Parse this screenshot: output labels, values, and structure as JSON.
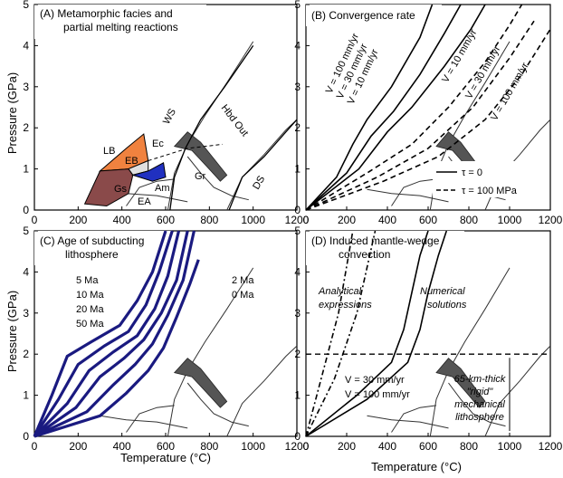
{
  "figure": {
    "ylabel": "Pressure (GPa)",
    "xlabel": "Temperature (°C)"
  },
  "chart_data": [
    {
      "type": "line",
      "title_lines": [
        "(A) Metamorphic facies and",
        "partial melting reactions"
      ],
      "xlim": [
        0,
        1200
      ],
      "ylim": [
        0,
        5
      ],
      "x_ticks": [
        0,
        200,
        400,
        600,
        800,
        1000,
        1200
      ],
      "y_ticks": [
        0,
        1,
        2,
        3,
        4,
        5
      ],
      "facies": [
        {
          "label": "LB",
          "color": "#f0823f",
          "polygon": [
            [
              300,
              0.95
            ],
            [
              420,
              1.5
            ],
            [
              500,
              1.85
            ],
            [
              520,
              1.2
            ],
            [
              430,
              1.0
            ]
          ]
        },
        {
          "label": "EB",
          "color": "#e0e0e0",
          "polygon": [
            [
              430,
              1.0
            ],
            [
              520,
              1.2
            ],
            [
              520,
              0.95
            ],
            [
              450,
              0.85
            ]
          ]
        },
        {
          "label": "Ec",
          "color": "#ffffff",
          "polygon": []
        },
        {
          "label": "Gs",
          "color": "#8a4a4a",
          "polygon": [
            [
              230,
              0.15
            ],
            [
              300,
              0.95
            ],
            [
              430,
              1.0
            ],
            [
              450,
              0.85
            ],
            [
              430,
              0.4
            ],
            [
              330,
              0.1
            ]
          ]
        },
        {
          "label": "Am",
          "color": "#2030c0",
          "polygon": [
            [
              450,
              0.85
            ],
            [
              520,
              0.95
            ],
            [
              590,
              1.15
            ],
            [
              600,
              0.8
            ],
            [
              540,
              0.7
            ]
          ]
        },
        {
          "label": "EA",
          "color": "#ffffff",
          "polygon": []
        }
      ],
      "labels": [
        "WS",
        "Hbd Out",
        "Gr",
        "DS"
      ],
      "lines": [
        {
          "name": "WS",
          "points": [
            [
              620,
              0
            ],
            [
              640,
              0.8
            ],
            [
              690,
              1.5
            ],
            [
              760,
              2.2
            ],
            [
              870,
              3.0
            ],
            [
              1000,
              4.0
            ]
          ]
        },
        {
          "name": "DS",
          "points": [
            [
              890,
              0
            ],
            [
              950,
              0.8
            ],
            [
              1050,
              1.3
            ],
            [
              1150,
              1.9
            ],
            [
              1200,
              2.2
            ]
          ]
        }
      ]
    },
    {
      "type": "line",
      "title": "(B) Convergence rate",
      "xlim": [
        0,
        1200
      ],
      "ylim": [
        0,
        5
      ],
      "x_ticks": [
        0,
        200,
        400,
        600,
        800,
        1000,
        1200
      ],
      "y_ticks": [
        0,
        1,
        2,
        3,
        4,
        5
      ],
      "legend": [
        {
          "label": "τ = 0",
          "style": "solid"
        },
        {
          "label": "τ = 100 MPa",
          "style": "dashed"
        }
      ],
      "annotations": [
        "V = 100 mm/yr",
        "V = 30 mm/yr",
        "V = 10 mm/yr",
        "V = 10 mm/yr",
        "V = 30 mm/yr",
        "V = 100 mm/yr"
      ],
      "series": [
        {
          "values": [
            [
              0,
              0
            ],
            [
              150,
              0.8
            ],
            [
              230,
              1.6
            ],
            [
              300,
              2.2
            ],
            [
              420,
              3.0
            ],
            [
              560,
              4.2
            ],
            [
              620,
              5.0
            ]
          ]
        },
        {
          "values": [
            [
              0,
              0
            ],
            [
              200,
              0.9
            ],
            [
              320,
              1.8
            ],
            [
              430,
              2.4
            ],
            [
              560,
              3.3
            ],
            [
              680,
              4.3
            ],
            [
              760,
              5.0
            ]
          ]
        },
        {
          "values": [
            [
              0,
              0
            ],
            [
              260,
              1.0
            ],
            [
              400,
              1.9
            ],
            [
              520,
              2.5
            ],
            [
              680,
              3.5
            ],
            [
              810,
              4.4
            ],
            [
              880,
              5.0
            ]
          ]
        },
        {
          "values": [
            [
              0,
              0
            ],
            [
              300,
              0.9
            ],
            [
              520,
              1.6
            ],
            [
              700,
              2.5
            ],
            [
              880,
              3.6
            ],
            [
              1000,
              4.5
            ],
            [
              1060,
              5.0
            ]
          ]
        },
        {
          "values": [
            [
              0,
              0
            ],
            [
              350,
              0.8
            ],
            [
              600,
              1.5
            ],
            [
              820,
              2.5
            ],
            [
              1000,
              3.7
            ],
            [
              1120,
              4.6
            ]
          ]
        },
        {
          "values": [
            [
              0,
              0
            ],
            [
              380,
              0.7
            ],
            [
              650,
              1.3
            ],
            [
              880,
              2.2
            ],
            [
              1060,
              3.3
            ],
            [
              1200,
              4.4
            ]
          ]
        }
      ]
    },
    {
      "type": "line",
      "title_lines": [
        "(C) Age of subducting",
        "lithosphere"
      ],
      "xlim": [
        0,
        1200
      ],
      "ylim": [
        0,
        5
      ],
      "x_ticks": [
        0,
        200,
        400,
        600,
        800,
        1000,
        1200
      ],
      "y_ticks": [
        0,
        1,
        2,
        3,
        4,
        5
      ],
      "annotations": [
        "5 Ma",
        "10 Ma",
        "20 Ma",
        "50 Ma",
        "2 Ma",
        "0 Ma"
      ],
      "series": [
        {
          "name": "5 Ma",
          "values": [
            [
              0,
              0
            ],
            [
              80,
              1.0
            ],
            [
              150,
              1.95
            ],
            [
              260,
              2.3
            ],
            [
              390,
              2.7
            ],
            [
              470,
              3.3
            ],
            [
              540,
              4.0
            ],
            [
              600,
              5.0
            ]
          ]
        },
        {
          "name": "10 Ma",
          "values": [
            [
              0,
              0
            ],
            [
              110,
              0.9
            ],
            [
              200,
              1.75
            ],
            [
              320,
              2.2
            ],
            [
              430,
              2.55
            ],
            [
              510,
              3.2
            ],
            [
              570,
              4.0
            ],
            [
              630,
              5.0
            ]
          ]
        },
        {
          "name": "20 Ma",
          "values": [
            [
              0,
              0
            ],
            [
              150,
              0.8
            ],
            [
              250,
              1.6
            ],
            [
              360,
              2.05
            ],
            [
              470,
              2.45
            ],
            [
              550,
              3.1
            ],
            [
              610,
              3.9
            ],
            [
              660,
              5.0
            ]
          ]
        },
        {
          "name": "50 Ma",
          "values": [
            [
              0,
              0
            ],
            [
              190,
              0.7
            ],
            [
              300,
              1.45
            ],
            [
              410,
              1.9
            ],
            [
              500,
              2.35
            ],
            [
              580,
              3.0
            ],
            [
              650,
              3.8
            ],
            [
              700,
              5.0
            ]
          ]
        },
        {
          "name": "2 Ma",
          "values": [
            [
              0,
              0
            ],
            [
              240,
              0.6
            ],
            [
              360,
              1.25
            ],
            [
              460,
              1.75
            ],
            [
              540,
              2.25
            ],
            [
              610,
              2.95
            ],
            [
              680,
              3.8
            ],
            [
              730,
              5.0
            ]
          ]
        },
        {
          "name": "0 Ma",
          "values": [
            [
              0,
              0
            ],
            [
              300,
              0.5
            ],
            [
              420,
              1.05
            ],
            [
              520,
              1.6
            ],
            [
              590,
              2.15
            ],
            [
              650,
              2.9
            ],
            [
              710,
              3.7
            ],
            [
              750,
              4.3
            ]
          ]
        }
      ]
    },
    {
      "type": "line",
      "title_lines": [
        "(D) Induced mantle-wedge",
        "convection"
      ],
      "xlim": [
        0,
        1200
      ],
      "ylim": [
        0,
        5
      ],
      "x_ticks": [
        0,
        200,
        400,
        600,
        800,
        1000,
        1200
      ],
      "y_ticks": [
        0,
        1,
        2,
        3,
        4,
        5
      ],
      "annotations_analytical": [
        "Analytical",
        "expressions"
      ],
      "annotations_numerical": [
        "Numerical",
        "solutions"
      ],
      "annotations_v": [
        "V = 30 mm/yr",
        "V = 100 mm/yr"
      ],
      "annotations_litho": [
        "65-km-thick",
        "\"rigid\"",
        "mechanical",
        "lithosphere"
      ],
      "lithosphere_base_gpa": 2.0,
      "series": [
        {
          "values": [
            [
              0,
              0
            ],
            [
              80,
              1.5
            ],
            [
              160,
              3.0
            ],
            [
              230,
              5.0
            ]
          ]
        },
        {
          "values": [
            [
              0,
              0
            ],
            [
              140,
              1.4
            ],
            [
              250,
              3.0
            ],
            [
              340,
              5.0
            ]
          ]
        },
        {
          "values": [
            [
              0,
              0
            ],
            [
              300,
              0.9
            ],
            [
              500,
              1.8
            ],
            [
              560,
              2.6
            ],
            [
              600,
              3.5
            ],
            [
              650,
              4.4
            ],
            [
              690,
              5.0
            ]
          ]
        },
        {
          "values": [
            [
              0,
              0
            ],
            [
              250,
              1.0
            ],
            [
              420,
              1.8
            ],
            [
              480,
              2.6
            ],
            [
              520,
              3.5
            ],
            [
              560,
              4.4
            ],
            [
              600,
              5.0
            ]
          ]
        }
      ]
    }
  ]
}
